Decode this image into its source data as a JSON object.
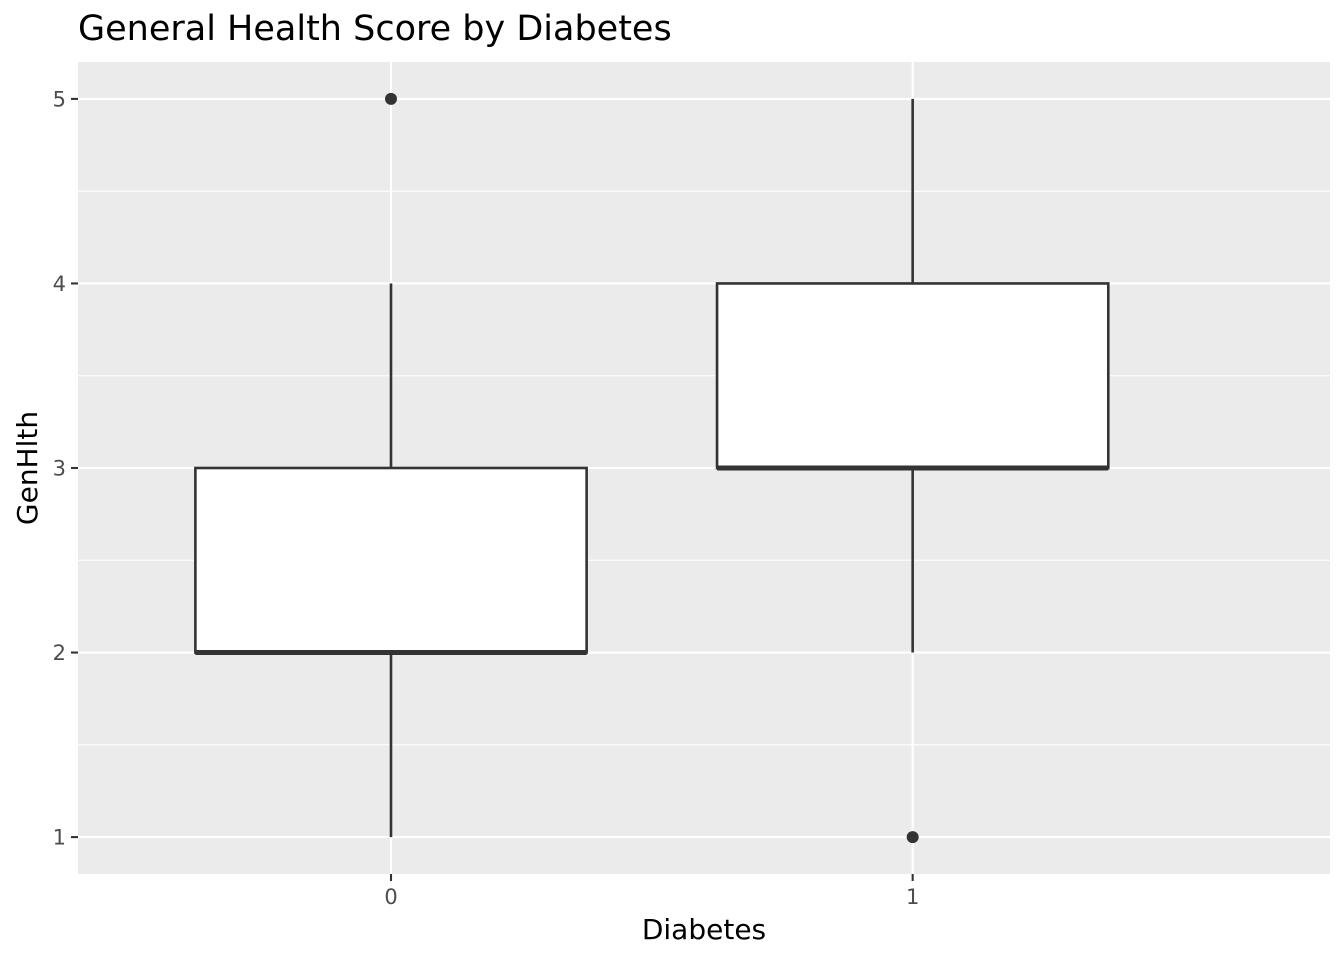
{
  "chart_data": {
    "type": "boxplot",
    "title": "General Health Score by Diabetes",
    "xlabel": "Diabetes",
    "ylabel": "GenHlth",
    "categories": [
      "0",
      "1"
    ],
    "ylim": [
      0.8,
      5.2
    ],
    "y_ticks": [
      1,
      2,
      3,
      4,
      5
    ],
    "y_minor_ticks": [
      1.5,
      2.5,
      3.5,
      4.5
    ],
    "grid": true,
    "legend": "none",
    "colors": {
      "panel": "#ebebeb",
      "grid": "#ffffff",
      "box_fill": "#ffffff",
      "box_line": "#333333",
      "tick_text": "#4d4d4d"
    },
    "boxes": [
      {
        "category": "0",
        "whisker_low": 1,
        "q1": 2,
        "median": 2,
        "q3": 3,
        "whisker_high": 4,
        "outliers": [
          5
        ]
      },
      {
        "category": "1",
        "whisker_low": 2,
        "q1": 3,
        "median": 3,
        "q3": 4,
        "whisker_high": 5,
        "outliers": [
          1
        ]
      }
    ]
  }
}
